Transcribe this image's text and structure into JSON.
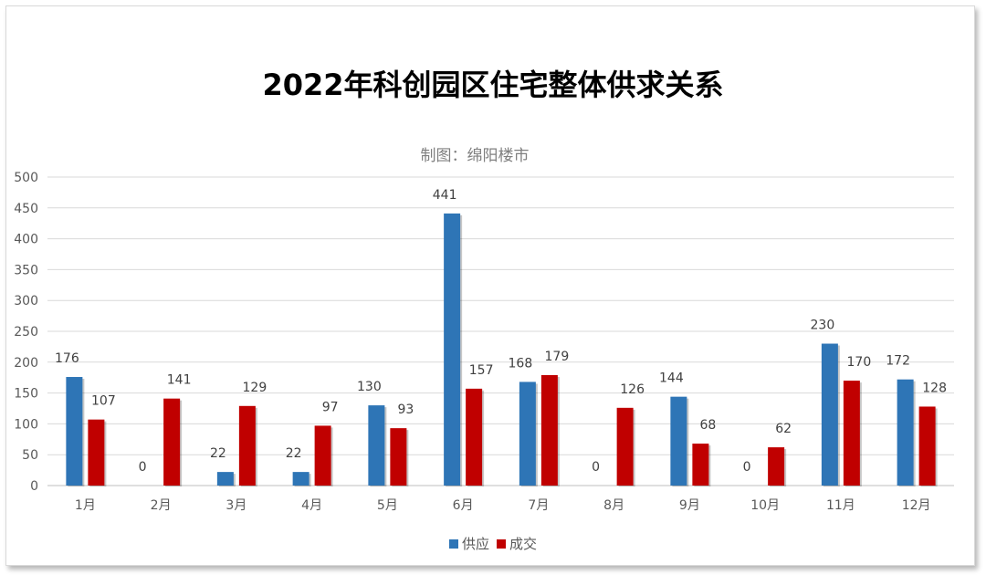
{
  "chart_data": {
    "type": "bar",
    "title": "2022年科创园区住宅整体供求关系",
    "subtitle": "制图：绵阳楼市",
    "categories": [
      "1月",
      "2月",
      "3月",
      "4月",
      "5月",
      "6月",
      "7月",
      "8月",
      "9月",
      "10月",
      "11月",
      "12月"
    ],
    "series": [
      {
        "name": "供应",
        "color": "#2E75B6",
        "values": [
          176,
          0,
          22,
          22,
          130,
          441,
          168,
          0,
          144,
          0,
          230,
          172
        ]
      },
      {
        "name": "成交",
        "color": "#C00000",
        "values": [
          107,
          141,
          129,
          97,
          93,
          157,
          179,
          126,
          68,
          62,
          170,
          128
        ]
      }
    ],
    "ylim": [
      0,
      500
    ],
    "yticks": [
      0,
      50,
      100,
      150,
      200,
      250,
      300,
      350,
      400,
      450,
      500
    ],
    "grid": true,
    "legend_position": "bottom"
  }
}
